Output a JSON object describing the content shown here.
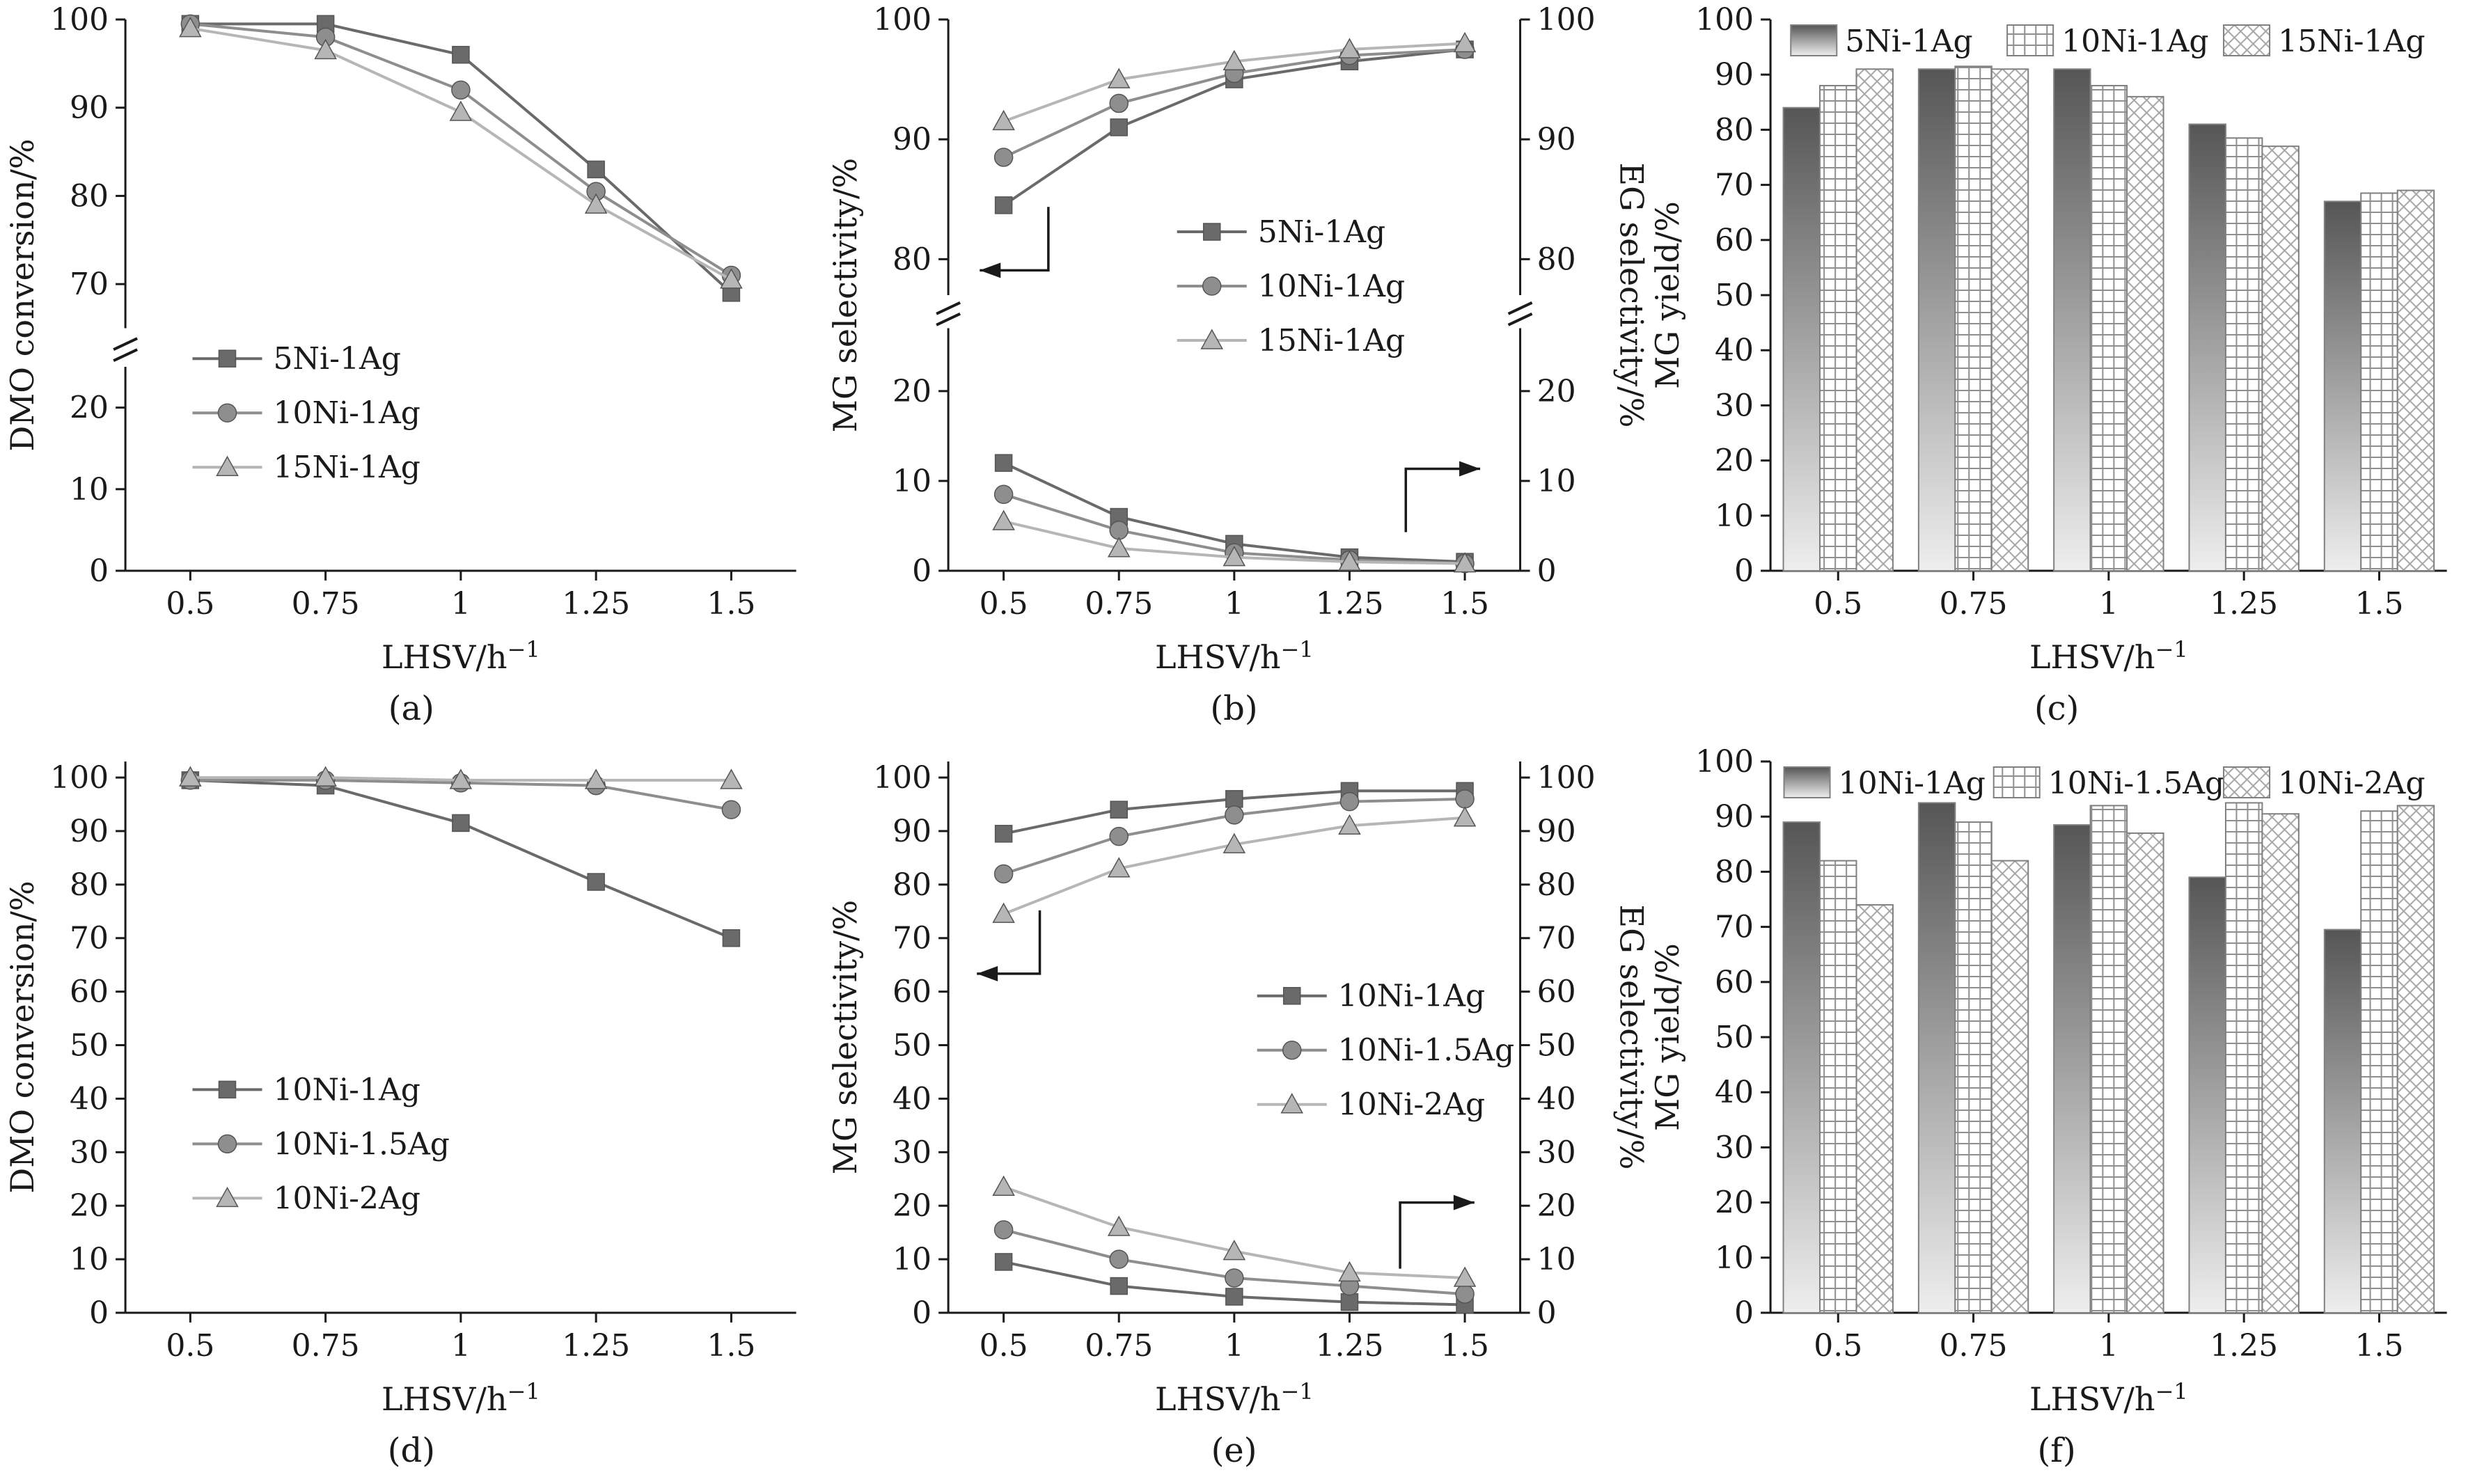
{
  "figure": {
    "background": "#ffffff",
    "axis_color": "#1a1a1a",
    "text_color": "#1a1a1a",
    "series_colors": [
      "#6a6a6a",
      "#8e8e8e",
      "#b6b6b6"
    ],
    "bar_outline": "#808080",
    "gradient_stops": [
      "#565656",
      "#eeeeee"
    ],
    "grid_pattern_color": "#8f8f8f",
    "crosshatch_pattern_color": "#a6a6a6"
  },
  "chart_data": [
    {
      "type": "line",
      "caption": "(a)",
      "xlabel": "LHSV/h⁻¹",
      "ylabel": "DMO conversion/%",
      "x": [
        0.5,
        0.75,
        1,
        1.25,
        1.5
      ],
      "x_tick_labels": [
        "0.5",
        "0.75",
        "1",
        "1.25",
        "1.5"
      ],
      "xlim": [
        0.38,
        1.62
      ],
      "y_axis": {
        "segments": [
          {
            "from": 0,
            "to": 25,
            "ticks": [
              0,
              10,
              20
            ],
            "frac": 0.37
          },
          {
            "from": 65,
            "to": 100,
            "ticks": [
              70,
              80,
              90,
              100
            ],
            "frac": 0.56
          }
        ]
      },
      "series": [
        {
          "name": "5Ni-1Ag",
          "marker": "square",
          "values": [
            99.5,
            99.5,
            96,
            83,
            69
          ]
        },
        {
          "name": "10Ni-1Ag",
          "marker": "circle",
          "values": [
            99.5,
            98,
            92,
            80.5,
            71
          ]
        },
        {
          "name": "15Ni-1Ag",
          "marker": "triangle",
          "values": [
            99,
            96.5,
            89.5,
            79,
            70.5
          ]
        }
      ],
      "legend": {
        "x": 0.1,
        "y": 0.6
      }
    },
    {
      "type": "line",
      "caption": "(b)",
      "xlabel": "LHSV/h⁻¹",
      "ylabel": "MG selectivity/%",
      "ylabel_right": "EG selectivity/%",
      "x": [
        0.5,
        0.75,
        1,
        1.25,
        1.5
      ],
      "x_tick_labels": [
        "0.5",
        "0.75",
        "1",
        "1.25",
        "1.5"
      ],
      "xlim": [
        0.38,
        1.62
      ],
      "y_axis": {
        "segments": [
          {
            "from": 0,
            "to": 27,
            "ticks": [
              0,
              10,
              20
            ],
            "frac": 0.44
          },
          {
            "from": 77,
            "to": 100,
            "ticks": [
              80,
              90,
              100
            ],
            "frac": 0.5
          }
        ]
      },
      "series": [
        {
          "name": "5Ni-1Ag",
          "marker": "square",
          "values": [
            84.5,
            91,
            95,
            96.5,
            97.5
          ]
        },
        {
          "name": "10Ni-1Ag",
          "marker": "circle",
          "values": [
            88.5,
            93,
            95.5,
            97,
            97.5
          ]
        },
        {
          "name": "15Ni-1Ag",
          "marker": "triangle",
          "values": [
            91.5,
            95,
            96.5,
            97.5,
            98
          ]
        }
      ],
      "series_right": [
        {
          "name": "5Ni-1Ag",
          "marker": "square",
          "values": [
            12,
            6,
            3,
            1.5,
            1
          ]
        },
        {
          "name": "10Ni-1Ag",
          "marker": "circle",
          "values": [
            8.5,
            4.5,
            2,
            1.2,
            0.8
          ]
        },
        {
          "name": "15Ni-1Ag",
          "marker": "triangle",
          "values": [
            5.5,
            2.5,
            1.5,
            1,
            0.8
          ]
        }
      ],
      "legend": {
        "x": 0.4,
        "y": 0.37
      },
      "arrows": [
        {
          "points": [
            [
              0.175,
              0.34
            ],
            [
              0.175,
              0.455
            ],
            [
              0.055,
              0.455
            ]
          ]
        },
        {
          "points": [
            [
              0.8,
              0.93
            ],
            [
              0.8,
              0.815
            ],
            [
              0.93,
              0.815
            ]
          ]
        }
      ]
    },
    {
      "type": "bar",
      "caption": "(c)",
      "xlabel": "LHSV/h⁻¹",
      "ylabel": "MG yield/%",
      "categories": [
        "0.5",
        "0.75",
        "1",
        "1.25",
        "1.5"
      ],
      "ylim": [
        0,
        100
      ],
      "y_ticks": [
        0,
        10,
        20,
        30,
        40,
        50,
        60,
        70,
        80,
        90,
        100
      ],
      "series": [
        {
          "name": "5Ni-1Ag",
          "fill": "gradient",
          "values": [
            84,
            91,
            91,
            81,
            67
          ]
        },
        {
          "name": "10Ni-1Ag",
          "fill": "grid",
          "values": [
            88,
            91.5,
            88,
            78.5,
            68.5
          ]
        },
        {
          "name": "15Ni-1Ag",
          "fill": "crosshatch",
          "values": [
            91,
            91,
            86,
            77,
            69
          ]
        }
      ],
      "legend": {
        "item_x": [
          0.03,
          0.35,
          0.67
        ]
      }
    },
    {
      "type": "line",
      "caption": "(d)",
      "xlabel": "LHSV/h⁻¹",
      "ylabel": "DMO conversion/%",
      "x": [
        0.5,
        0.75,
        1,
        1.25,
        1.5
      ],
      "x_tick_labels": [
        "0.5",
        "0.75",
        "1",
        "1.25",
        "1.5"
      ],
      "xlim": [
        0.38,
        1.62
      ],
      "y_axis": {
        "segments": [
          {
            "from": 0,
            "to": 103,
            "ticks": [
              0,
              10,
              20,
              30,
              40,
              50,
              60,
              70,
              80,
              90,
              100
            ],
            "frac": 1.0
          }
        ]
      },
      "series": [
        {
          "name": "10Ni-1Ag",
          "marker": "square",
          "values": [
            99.5,
            98.5,
            91.5,
            80.5,
            70
          ]
        },
        {
          "name": "10Ni-1.5Ag",
          "marker": "circle",
          "values": [
            99.5,
            99.5,
            99,
            98.5,
            94
          ]
        },
        {
          "name": "10Ni-2Ag",
          "marker": "triangle",
          "values": [
            100,
            100,
            99.5,
            99.5,
            99.5
          ]
        }
      ],
      "legend": {
        "x": 0.1,
        "y": 0.58
      }
    },
    {
      "type": "line",
      "caption": "(e)",
      "xlabel": "LHSV/h⁻¹",
      "ylabel": "MG selectivity/%",
      "ylabel_right": "EG selectivity/%",
      "x": [
        0.5,
        0.75,
        1,
        1.25,
        1.5
      ],
      "x_tick_labels": [
        "0.5",
        "0.75",
        "1",
        "1.25",
        "1.5"
      ],
      "xlim": [
        0.38,
        1.62
      ],
      "y_axis": {
        "segments": [
          {
            "from": 0,
            "to": 103,
            "ticks": [
              0,
              10,
              20,
              30,
              40,
              50,
              60,
              70,
              80,
              90,
              100
            ],
            "frac": 1.0
          }
        ]
      },
      "series": [
        {
          "name": "10Ni-1Ag",
          "marker": "square",
          "values": [
            89.5,
            94,
            96,
            97.5,
            97.5
          ]
        },
        {
          "name": "10Ni-1.5Ag",
          "marker": "circle",
          "values": [
            82,
            89,
            93,
            95.5,
            96
          ]
        },
        {
          "name": "10Ni-2Ag",
          "marker": "triangle",
          "values": [
            74.5,
            83,
            87.5,
            91,
            92.5
          ]
        }
      ],
      "series_right": [
        {
          "name": "10Ni-1Ag",
          "marker": "square",
          "values": [
            9.5,
            5,
            3,
            2,
            1.5
          ]
        },
        {
          "name": "10Ni-1.5Ag",
          "marker": "circle",
          "values": [
            15.5,
            10,
            6.5,
            5,
            3.5
          ]
        },
        {
          "name": "10Ni-2Ag",
          "marker": "triangle",
          "values": [
            23.5,
            16,
            11.5,
            7.5,
            6.5
          ]
        }
      ],
      "legend": {
        "x": 0.54,
        "y": 0.41
      },
      "arrows": [
        {
          "points": [
            [
              0.16,
              0.27
            ],
            [
              0.16,
              0.385
            ],
            [
              0.05,
              0.385
            ]
          ]
        },
        {
          "points": [
            [
              0.79,
              0.92
            ],
            [
              0.79,
              0.8
            ],
            [
              0.92,
              0.8
            ]
          ]
        }
      ]
    },
    {
      "type": "bar",
      "caption": "(f)",
      "xlabel": "LHSV/h⁻¹",
      "ylabel": "MG yield/%",
      "categories": [
        "0.5",
        "0.75",
        "1",
        "1.25",
        "1.5"
      ],
      "ylim": [
        0,
        100
      ],
      "y_ticks": [
        0,
        10,
        20,
        30,
        40,
        50,
        60,
        70,
        80,
        90,
        100
      ],
      "series": [
        {
          "name": "10Ni-1Ag",
          "fill": "gradient",
          "values": [
            89,
            92.5,
            88.5,
            79,
            69.5
          ]
        },
        {
          "name": "10Ni-1.5Ag",
          "fill": "grid",
          "values": [
            82,
            89,
            92,
            92.5,
            91
          ]
        },
        {
          "name": "10Ni-2Ag",
          "fill": "crosshatch",
          "values": [
            74,
            82,
            87,
            90.5,
            92
          ]
        }
      ],
      "legend": {
        "item_x": [
          0.02,
          0.33,
          0.67
        ]
      }
    }
  ]
}
